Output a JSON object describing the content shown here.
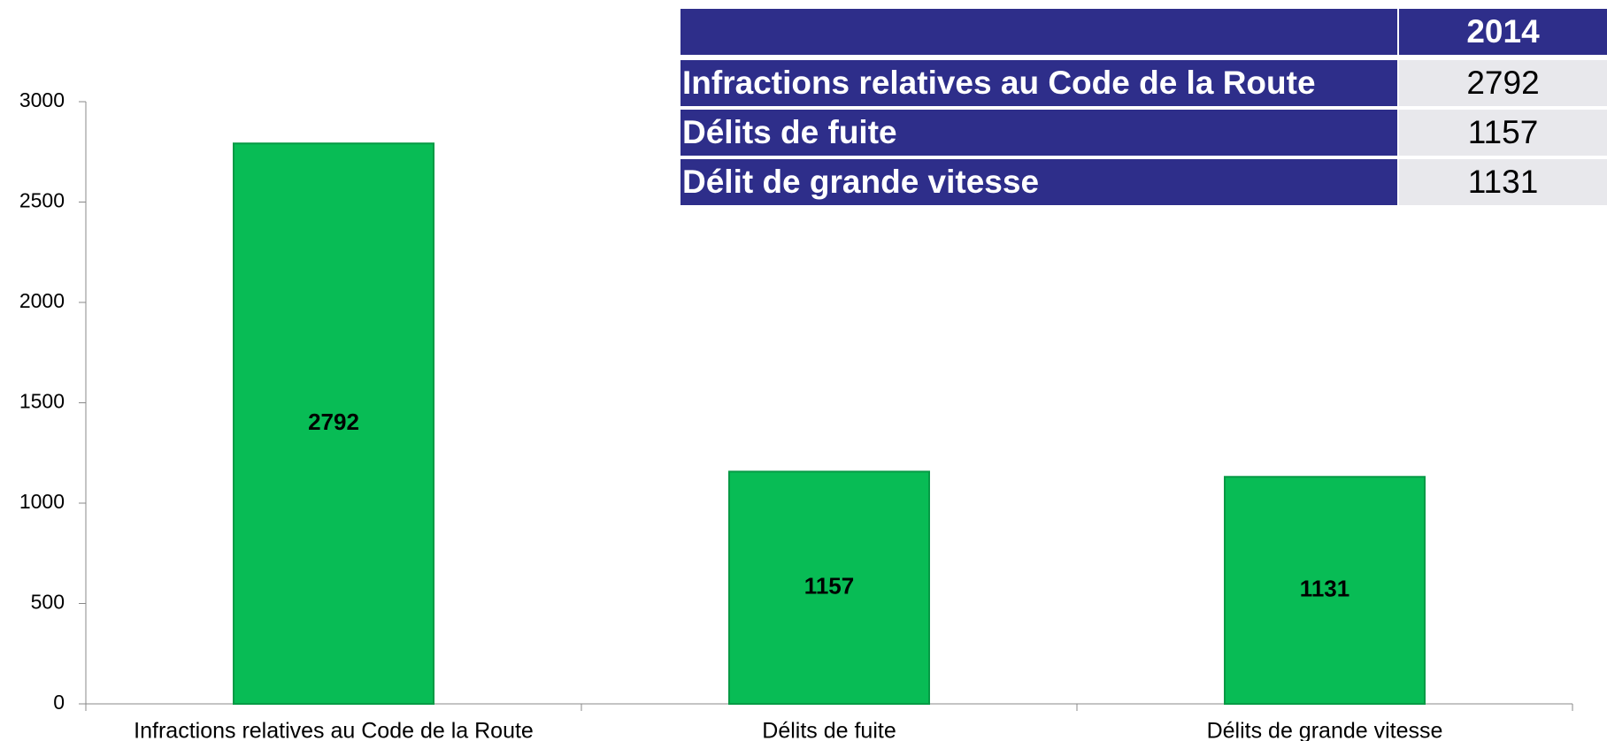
{
  "chart_data": {
    "type": "bar",
    "categories": [
      "Infractions relatives au Code de la Route",
      "Délits de fuite",
      "Délits de grande vitesse"
    ],
    "values": [
      2792,
      1157,
      1131
    ],
    "color": "#08bc55",
    "ylim": [
      0,
      3000
    ],
    "yticks": [
      0,
      500,
      1000,
      1500,
      2000,
      2500,
      3000
    ],
    "grid": false
  },
  "table": {
    "column_header": "2014",
    "rows": [
      [
        "Infractions relatives au Code de la Route",
        2792
      ],
      [
        "Délits de fuite",
        1157
      ],
      [
        "Délit de grande vitesse",
        1131
      ]
    ]
  }
}
